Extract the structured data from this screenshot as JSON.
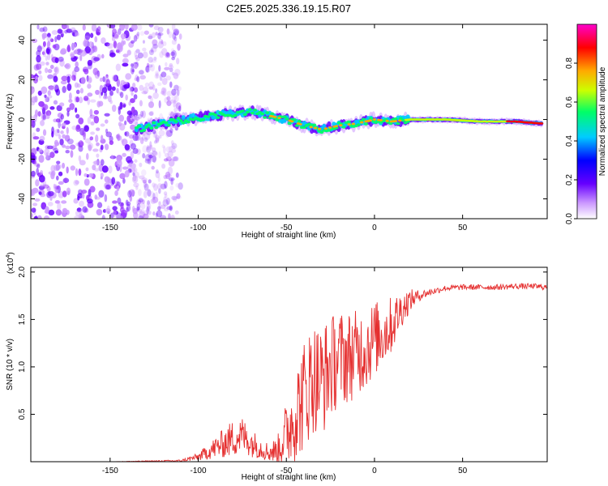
{
  "chart_data": [
    {
      "type": "heatmap",
      "title": "C2E5.2025.336.19.15.R07",
      "xlabel": "Height of straight line (km)",
      "ylabel": "Frequency (Hz)",
      "xlim": [
        -195,
        98
      ],
      "ylim": [
        -50,
        48
      ],
      "x_ticks": [
        -150,
        -100,
        -50,
        0,
        50
      ],
      "y_ticks": [
        40,
        20,
        0,
        -20,
        -40
      ],
      "colorbar": {
        "label": "Normalized spectral amplitude",
        "range": [
          0,
          1
        ],
        "ticks": [
          "0.0",
          "0.2",
          "0.4",
          "0.6",
          "0.8"
        ],
        "colors": [
          "#ffffff",
          "#cc99ff",
          "#6600ff",
          "#0000ff",
          "#00ccff",
          "#00ff66",
          "#ccff00",
          "#ffaa00",
          "#ff0000",
          "#ff00cc"
        ]
      },
      "ridge": {
        "x": [
          -135,
          -120,
          -100,
          -80,
          -70,
          -60,
          -50,
          -40,
          -30,
          -20,
          -10,
          0,
          10,
          20,
          40,
          60,
          80,
          95
        ],
        "freq": [
          -5,
          -2,
          1,
          3,
          4,
          2,
          0,
          -3,
          -5,
          -3,
          -2,
          0,
          -1,
          0,
          0,
          -1,
          -1,
          -2
        ]
      },
      "noise_region_x": [
        -195,
        -120
      ]
    },
    {
      "type": "line",
      "xlabel": "Height of straight line (km)",
      "ylabel": "SNR (10 * v/v)",
      "scale_label": "(x10",
      "scale_exp": "4",
      "scale_close": ")",
      "xlim": [
        -195,
        98
      ],
      "ylim": [
        0,
        2.05
      ],
      "x_ticks": [
        -150,
        -100,
        -50,
        0,
        50
      ],
      "y_ticks": [
        0.5,
        1.0,
        1.5,
        2.0
      ],
      "series": [
        {
          "name": "SNR",
          "color": "#e53030",
          "x": [
            -195,
            -150,
            -110,
            -100,
            -90,
            -80,
            -75,
            -70,
            -65,
            -60,
            -55,
            -50,
            -45,
            -40,
            -35,
            -30,
            -25,
            -20,
            -15,
            -10,
            -5,
            0,
            5,
            10,
            15,
            20,
            25,
            30,
            40,
            50,
            60,
            70,
            80,
            90,
            98
          ],
          "y": [
            0.0,
            0.0,
            0.01,
            0.05,
            0.15,
            0.25,
            0.28,
            0.2,
            0.15,
            0.1,
            0.12,
            0.3,
            0.5,
            0.7,
            0.9,
            0.85,
            1.0,
            1.1,
            1.1,
            1.15,
            1.2,
            1.3,
            1.35,
            1.45,
            1.6,
            1.7,
            1.75,
            1.78,
            1.83,
            1.84,
            1.84,
            1.84,
            1.85,
            1.85,
            1.84
          ],
          "spread": [
            0.0,
            0.0,
            0.01,
            0.04,
            0.12,
            0.2,
            0.2,
            0.15,
            0.12,
            0.1,
            0.15,
            0.35,
            0.5,
            0.6,
            0.6,
            0.6,
            0.55,
            0.5,
            0.5,
            0.45,
            0.45,
            0.4,
            0.35,
            0.3,
            0.2,
            0.12,
            0.06,
            0.04,
            0.03,
            0.03,
            0.03,
            0.03,
            0.03,
            0.03,
            0.03
          ]
        }
      ]
    }
  ]
}
